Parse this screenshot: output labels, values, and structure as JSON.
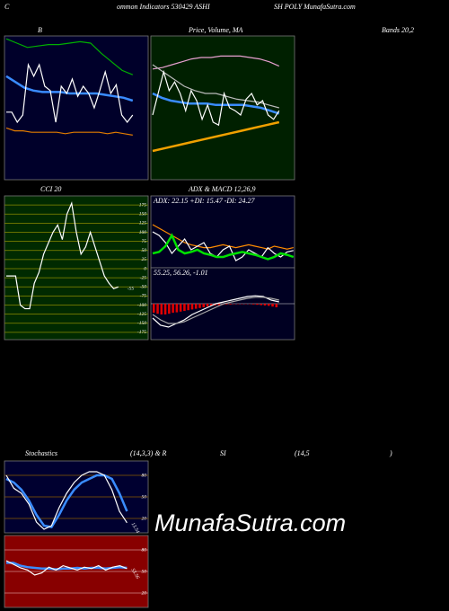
{
  "header": {
    "left": "C",
    "middle": "ommon Indicators 530429 ASHI",
    "right": "SH POLY MunafaSutra.com"
  },
  "labels": {
    "b": "B",
    "price": "Price, Volume, MA",
    "bands": "Bands 20,2",
    "cci": "CCI 20",
    "adx": "ADX  & MACD 12,26,9",
    "stoch": "Stochastics",
    "stoch_params": "(14,3,3) & R",
    "si": "SI",
    "rsi_params": "(14,5",
    "close": ")"
  },
  "watermark": "MunafaSutra.com",
  "panels": [
    {
      "id": "bb",
      "ylim": [
        0,
        100
      ],
      "lines": [
        {
          "color": "#00b000",
          "values": [
            98,
            95,
            92,
            93,
            94,
            94,
            95,
            96,
            95,
            88,
            82,
            76,
            73
          ]
        },
        {
          "color": "#3a8cff",
          "values": [
            72,
            68,
            64,
            62,
            61,
            61,
            61,
            60,
            60,
            60,
            60,
            59,
            58,
            57,
            55
          ]
        },
        {
          "color": "#ffffff",
          "values": [
            47,
            47,
            40,
            45,
            80,
            72,
            80,
            65,
            62,
            40,
            65,
            60,
            70,
            58,
            65,
            60,
            50,
            62,
            75,
            60,
            66,
            45,
            40,
            45
          ]
        },
        {
          "color": "#e07b00",
          "values": [
            36,
            34,
            34,
            33,
            33,
            33,
            33,
            32,
            33,
            33,
            33,
            33,
            32,
            33,
            32,
            31
          ]
        }
      ]
    },
    {
      "id": "price",
      "ylim": [
        0,
        100
      ],
      "lines": [
        {
          "color": "#e8a0d0",
          "values": [
            77,
            78,
            80,
            82,
            84,
            85,
            85,
            86,
            86,
            86,
            85,
            84,
            82,
            79
          ]
        },
        {
          "color": "#bbbbbb",
          "values": [
            80,
            75,
            70,
            65,
            62,
            60,
            60,
            58,
            56,
            55,
            54,
            52,
            50
          ]
        },
        {
          "color": "#3a8cff",
          "values": [
            60,
            57,
            55,
            54,
            53,
            53,
            53,
            52,
            52,
            52,
            52,
            51,
            50,
            48,
            46
          ]
        },
        {
          "color": "#ffffff",
          "values": [
            45,
            60,
            75,
            62,
            68,
            60,
            48,
            62,
            55,
            42,
            52,
            40,
            38,
            60,
            50,
            48,
            45,
            56,
            60,
            52,
            55,
            45,
            42,
            48
          ]
        },
        {
          "color": "#f0a000",
          "values": [
            20,
            22,
            24,
            26,
            28,
            30,
            32,
            34,
            36,
            38,
            40
          ]
        }
      ]
    },
    {
      "id": "cci",
      "ylim": [
        -195,
        200
      ],
      "yticks": [
        175,
        150,
        125,
        100,
        75,
        50,
        25,
        0,
        -25,
        -50,
        -75,
        -100,
        -125,
        -150,
        -175
      ],
      "lines": [
        {
          "color": "#ffffff",
          "values": [
            -20,
            -20,
            -20,
            -100,
            -110,
            -110,
            -40,
            -10,
            40,
            70,
            100,
            120,
            80,
            150,
            180,
            100,
            40,
            60,
            100,
            60,
            20,
            -20,
            -40,
            -55,
            -50
          ]
        }
      ],
      "last_value": -55
    },
    {
      "id": "adx",
      "ylim": [
        0,
        100
      ],
      "text": "ADX: 22.15 +DI: 15.47 -DI: 24.27",
      "lines": [
        {
          "color": "#ff8c00",
          "values": [
            60,
            55,
            50,
            45,
            40,
            35,
            32,
            30,
            28,
            28,
            30,
            32,
            30,
            28,
            30,
            32,
            30,
            28,
            26,
            30,
            28,
            26,
            28
          ]
        },
        {
          "color": "#ffffff",
          "values": [
            50,
            45,
            35,
            20,
            30,
            40,
            25,
            30,
            35,
            20,
            15,
            25,
            30,
            10,
            15,
            25,
            20,
            15,
            28,
            20,
            15,
            22,
            24
          ]
        },
        {
          "color": "#00e000",
          "values": [
            20,
            22,
            30,
            45,
            25,
            20,
            22,
            25,
            20,
            18,
            15,
            15,
            18,
            20,
            22,
            20,
            18,
            15,
            12,
            15,
            20,
            18,
            15
          ]
        }
      ]
    },
    {
      "id": "macd",
      "ylim": [
        -100,
        100
      ],
      "text": "55.25, 56.26, -1.01",
      "lines": [
        {
          "color": "#ffffff",
          "values": [
            -40,
            -60,
            -65,
            -55,
            -45,
            -30,
            -20,
            -10,
            0,
            5,
            10,
            15,
            20,
            22,
            20,
            10,
            5
          ]
        },
        {
          "color": "#aaaaaa",
          "values": [
            -30,
            -45,
            -55,
            -55,
            -50,
            -40,
            -30,
            -20,
            -10,
            0,
            5,
            10,
            15,
            18,
            18,
            15,
            10
          ]
        }
      ],
      "bars": [
        -25,
        -28,
        -30,
        -30,
        -28,
        -25,
        -24,
        -22,
        -20,
        -18,
        -16,
        -14,
        -12,
        -10,
        -8,
        -6,
        -5,
        -4,
        -3,
        -2,
        -2,
        -1,
        -1,
        -1,
        -1,
        -1,
        -2,
        -3,
        -4,
        -5,
        -6,
        -8,
        -10
      ]
    },
    {
      "id": "stoch",
      "ylim": [
        0,
        100
      ],
      "yticks": [
        80,
        50,
        20
      ],
      "lines": [
        {
          "color": "#3a8cff",
          "values": [
            75,
            70,
            60,
            45,
            25,
            10,
            8,
            25,
            45,
            60,
            70,
            75,
            80,
            80,
            75,
            55,
            30
          ]
        },
        {
          "color": "#ffffff",
          "values": [
            80,
            62,
            55,
            40,
            15,
            5,
            10,
            35,
            55,
            70,
            80,
            85,
            85,
            80,
            60,
            30,
            14
          ]
        }
      ],
      "last_value": 13.54
    },
    {
      "id": "rsi",
      "ylim": [
        0,
        100
      ],
      "yticks": [
        80,
        50,
        20
      ],
      "lines": [
        {
          "color": "#3a8cff",
          "values": [
            62,
            62,
            58,
            56,
            55,
            54,
            54,
            53,
            54,
            54,
            55,
            54,
            55,
            55,
            54,
            55,
            56,
            55
          ]
        },
        {
          "color": "#ffffff",
          "values": [
            65,
            60,
            55,
            52,
            45,
            48,
            56,
            52,
            58,
            55,
            52,
            56,
            54,
            58,
            52,
            56,
            58,
            54
          ]
        }
      ],
      "last_value": 53.56
    }
  ]
}
